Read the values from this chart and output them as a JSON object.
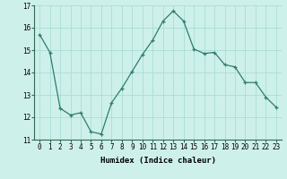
{
  "x": [
    0,
    1,
    2,
    3,
    4,
    5,
    6,
    7,
    8,
    9,
    10,
    11,
    12,
    13,
    14,
    15,
    16,
    17,
    18,
    19,
    20,
    21,
    22,
    23
  ],
  "y": [
    15.7,
    14.9,
    12.4,
    12.1,
    12.2,
    11.35,
    11.25,
    12.65,
    13.3,
    14.05,
    14.8,
    15.45,
    16.3,
    16.75,
    16.3,
    15.05,
    14.85,
    14.9,
    14.35,
    14.25,
    13.55,
    13.55,
    12.9,
    12.45
  ],
  "line_color": "#2e7d6e",
  "marker": "+",
  "bg_color": "#cef0ea",
  "grid_color": "#aaddd6",
  "xlabel": "Humidex (Indice chaleur)",
  "ylim": [
    11,
    17
  ],
  "xlim": [
    -0.5,
    23.5
  ],
  "yticks": [
    11,
    12,
    13,
    14,
    15,
    16,
    17
  ],
  "xtick_labels": [
    "0",
    "1",
    "2",
    "3",
    "4",
    "5",
    "6",
    "7",
    "8",
    "9",
    "10",
    "11",
    "12",
    "13",
    "14",
    "15",
    "16",
    "17",
    "18",
    "19",
    "20",
    "21",
    "22",
    "23"
  ],
  "label_fontsize": 6.5,
  "tick_fontsize": 5.5
}
